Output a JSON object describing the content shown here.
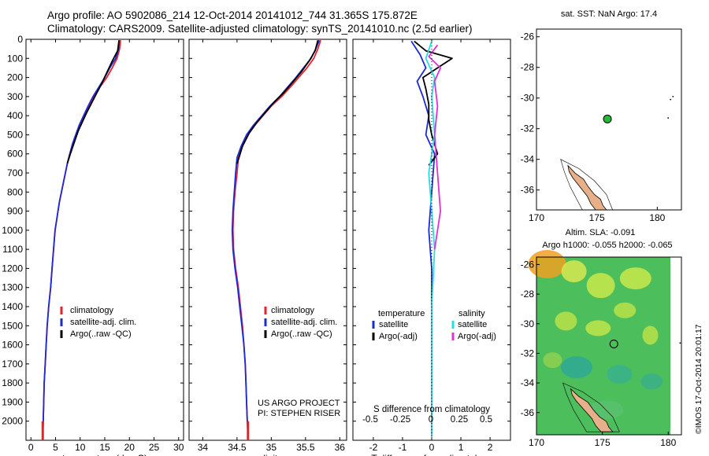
{
  "header": {
    "line1": "Argo profile: AO 5902086_214 12-Oct-2014 20141012_744 31.365S 175.872E",
    "line2": "Climatology: CARS2009. Satellite-adjusted climatology: synTS_20141010.nc (2.5d earlier)"
  },
  "colors": {
    "climatology": "#e8202a",
    "satellite": "#1a2bd6",
    "argo": "#000000",
    "sat_cyan": "#22e0e0",
    "argo_magenta": "#e030d0",
    "land": "#e8b088",
    "buoy": "#22bb33"
  },
  "chart_data": [
    {
      "type": "line",
      "id": "temperature",
      "xlabel": "temperature (deg C)",
      "ylabel": "",
      "xlim": [
        -1,
        31
      ],
      "ylim": [
        2100,
        0
      ],
      "xticks": [
        "0",
        "5",
        "10",
        "15",
        "20",
        "25",
        "30"
      ],
      "yticks": [
        "0",
        "100",
        "200",
        "300",
        "400",
        "500",
        "600",
        "700",
        "800",
        "900",
        "1000",
        "1100",
        "1200",
        "1300",
        "1400",
        "1500",
        "1600",
        "1700",
        "1800",
        "1900",
        "2000"
      ],
      "legend": [
        "climatology",
        "satellite-adj. clim.",
        "Argo(..raw -QC)"
      ],
      "series": [
        {
          "name": "climatology",
          "color": "#e8202a",
          "points": [
            [
              18.2,
              5
            ],
            [
              18.0,
              50
            ],
            [
              17.5,
              100
            ],
            [
              16.5,
              150
            ],
            [
              15.4,
              200
            ],
            [
              14.0,
              250
            ],
            [
              12.8,
              300
            ],
            [
              11.7,
              350
            ],
            [
              10.8,
              400
            ],
            [
              9.9,
              450
            ],
            [
              9.2,
              500
            ],
            [
              8.5,
              550
            ],
            [
              7.9,
              600
            ],
            [
              7.4,
              650
            ],
            [
              7.0,
              700
            ],
            [
              6.6,
              750
            ],
            [
              6.2,
              800
            ],
            [
              5.8,
              850
            ],
            [
              5.5,
              900
            ],
            [
              5.2,
              950
            ],
            [
              4.9,
              1000
            ],
            [
              4.6,
              1100
            ],
            [
              4.3,
              1200
            ],
            [
              4.0,
              1300
            ],
            [
              3.6,
              1400
            ],
            [
              3.3,
              1500
            ],
            [
              3.1,
              1600
            ],
            [
              2.9,
              1700
            ],
            [
              2.7,
              1800
            ],
            [
              2.6,
              1900
            ],
            [
              2.5,
              2000
            ],
            [
              2.4,
              2080
            ]
          ]
        },
        {
          "name": "satellite-adj. clim.",
          "color": "#1a2bd6",
          "points": [
            [
              17.9,
              5
            ],
            [
              17.8,
              50
            ],
            [
              17.2,
              100
            ],
            [
              16.0,
              150
            ],
            [
              15.0,
              200
            ],
            [
              13.8,
              250
            ],
            [
              12.6,
              300
            ],
            [
              11.6,
              350
            ],
            [
              10.7,
              400
            ],
            [
              9.8,
              450
            ],
            [
              9.1,
              500
            ],
            [
              8.4,
              550
            ],
            [
              7.9,
              600
            ],
            [
              7.4,
              650
            ],
            [
              7.0,
              700
            ],
            [
              6.6,
              750
            ],
            [
              6.2,
              800
            ],
            [
              5.8,
              850
            ],
            [
              5.5,
              900
            ],
            [
              5.2,
              950
            ],
            [
              4.9,
              1000
            ],
            [
              4.6,
              1100
            ],
            [
              4.3,
              1200
            ],
            [
              4.0,
              1300
            ],
            [
              3.6,
              1400
            ],
            [
              3.3,
              1500
            ],
            [
              3.1,
              1600
            ],
            [
              2.9,
              1700
            ],
            [
              2.7,
              1800
            ],
            [
              2.6,
              1900
            ],
            [
              2.5,
              2000
            ],
            [
              2.4,
              2080
            ]
          ]
        },
        {
          "name": "Argo(..raw -QC)",
          "color": "#000000",
          "points": [
            [
              17.9,
              5
            ],
            [
              17.6,
              60
            ],
            [
              16.4,
              120
            ],
            [
              15.3,
              180
            ],
            [
              14.4,
              230
            ],
            [
              13.4,
              280
            ],
            [
              12.4,
              330
            ],
            [
              11.4,
              380
            ],
            [
              10.5,
              430
            ],
            [
              9.6,
              480
            ],
            [
              8.8,
              540
            ],
            [
              8.0,
              600
            ],
            [
              7.4,
              650
            ]
          ]
        }
      ]
    },
    {
      "type": "line",
      "id": "salinity",
      "xlabel": "salinity",
      "ylabel": "",
      "xlim": [
        33.8,
        36.1
      ],
      "ylim": [
        2100,
        0
      ],
      "xticks": [
        "34",
        "34.5",
        "35",
        "35.5",
        "36"
      ],
      "legend": [
        "climatology",
        "satellite-adj. clim.",
        "Argo(..raw -QC)"
      ],
      "annotation": [
        "US ARGO PROJECT",
        "PI: STEPHEN RISER"
      ],
      "series": [
        {
          "name": "climatology",
          "color": "#e8202a",
          "points": [
            [
              35.72,
              5
            ],
            [
              35.68,
              50
            ],
            [
              35.62,
              100
            ],
            [
              35.52,
              150
            ],
            [
              35.4,
              200
            ],
            [
              35.28,
              250
            ],
            [
              35.15,
              300
            ],
            [
              35.0,
              350
            ],
            [
              34.88,
              400
            ],
            [
              34.76,
              450
            ],
            [
              34.66,
              500
            ],
            [
              34.58,
              560
            ],
            [
              34.52,
              620
            ],
            [
              34.5,
              700
            ],
            [
              34.47,
              800
            ],
            [
              34.45,
              900
            ],
            [
              34.44,
              1000
            ],
            [
              34.45,
              1100
            ],
            [
              34.48,
              1200
            ],
            [
              34.52,
              1300
            ],
            [
              34.55,
              1400
            ],
            [
              34.58,
              1500
            ],
            [
              34.6,
              1600
            ],
            [
              34.62,
              1700
            ],
            [
              34.63,
              1800
            ],
            [
              34.64,
              1900
            ],
            [
              34.65,
              2000
            ],
            [
              34.66,
              2080
            ]
          ]
        },
        {
          "name": "satellite-adj. clim.",
          "color": "#1a2bd6",
          "points": [
            [
              35.7,
              5
            ],
            [
              35.65,
              50
            ],
            [
              35.58,
              100
            ],
            [
              35.47,
              150
            ],
            [
              35.36,
              200
            ],
            [
              35.24,
              250
            ],
            [
              35.12,
              300
            ],
            [
              34.98,
              350
            ],
            [
              34.86,
              400
            ],
            [
              34.74,
              450
            ],
            [
              34.64,
              500
            ],
            [
              34.56,
              560
            ],
            [
              34.5,
              620
            ],
            [
              34.48,
              700
            ],
            [
              34.46,
              800
            ],
            [
              34.44,
              900
            ],
            [
              34.43,
              1000
            ],
            [
              34.44,
              1100
            ],
            [
              34.47,
              1200
            ],
            [
              34.51,
              1300
            ],
            [
              34.54,
              1400
            ],
            [
              34.57,
              1500
            ],
            [
              34.6,
              1600
            ],
            [
              34.62,
              1700
            ],
            [
              34.63,
              1800
            ],
            [
              34.64,
              1900
            ],
            [
              34.65,
              2000
            ],
            [
              34.66,
              2080
            ]
          ]
        },
        {
          "name": "Argo(..raw -QC)",
          "color": "#000000",
          "points": [
            [
              35.68,
              5
            ],
            [
              35.64,
              60
            ],
            [
              35.56,
              110
            ],
            [
              35.44,
              170
            ],
            [
              35.3,
              230
            ],
            [
              35.18,
              280
            ],
            [
              35.04,
              330
            ],
            [
              34.92,
              380
            ],
            [
              34.8,
              430
            ],
            [
              34.68,
              490
            ],
            [
              34.58,
              560
            ],
            [
              34.52,
              630
            ],
            [
              34.5,
              650
            ]
          ]
        }
      ]
    },
    {
      "type": "line",
      "id": "difference",
      "xlabel": "T difference from climatology",
      "xlabel_top": "S difference from climatology",
      "xlim": [
        -2.7,
        2.7
      ],
      "ylim": [
        2100,
        0
      ],
      "xticks": [
        "-2",
        "-1",
        "0",
        "1",
        "2"
      ],
      "xticks_top": [
        "-0.5",
        "-0.25",
        "0",
        "0.25",
        "0.5"
      ],
      "legend_temperature": [
        "temperature",
        "satellite",
        "Argo(-adj)"
      ],
      "legend_salinity": [
        "salinity",
        "satellite",
        "Argo(-adj)"
      ],
      "series": [
        {
          "name": "satellite",
          "color": "#1a2bd6",
          "points": [
            [
              -0.7,
              10
            ],
            [
              -0.4,
              80
            ],
            [
              -0.2,
              150
            ],
            [
              -0.5,
              220
            ],
            [
              -0.3,
              300
            ],
            [
              -0.1,
              400
            ],
            [
              -0.2,
              500
            ],
            [
              0.1,
              600
            ],
            [
              0.0,
              800
            ],
            [
              -0.1,
              1000
            ],
            [
              0.0,
              1200
            ],
            [
              0.0,
              1500
            ],
            [
              0.0,
              1800
            ],
            [
              0.0,
              2080
            ]
          ]
        },
        {
          "name": "Argo(-adj)",
          "color": "#000000",
          "points": [
            [
              -0.6,
              10
            ],
            [
              -0.2,
              60
            ],
            [
              0.7,
              100
            ],
            [
              0.2,
              150
            ],
            [
              -0.3,
              200
            ],
            [
              -0.2,
              260
            ],
            [
              -0.1,
              340
            ],
            [
              -0.1,
              420
            ],
            [
              0.0,
              500
            ],
            [
              0.2,
              600
            ],
            [
              -0.1,
              660
            ]
          ]
        },
        {
          "name": "satellite",
          "color": "#22e0e0",
          "points": [
            [
              0.0,
              10
            ],
            [
              -0.2,
              100
            ],
            [
              0.1,
              200
            ],
            [
              0.0,
              300
            ],
            [
              0.1,
              500
            ],
            [
              -0.1,
              700
            ],
            [
              0.0,
              900
            ],
            [
              0.1,
              1100
            ],
            [
              0.0,
              1400
            ],
            [
              0.0,
              1700
            ],
            [
              0.0,
              2080
            ]
          ]
        },
        {
          "name": "Argo(-adj)",
          "color": "#e030d0",
          "points": [
            [
              0.2,
              30
            ],
            [
              -0.1,
              90
            ],
            [
              0.3,
              150
            ],
            [
              0.1,
              220
            ],
            [
              0.2,
              350
            ],
            [
              0.1,
              500
            ],
            [
              0.2,
              700
            ],
            [
              0.3,
              900
            ],
            [
              0.1,
              1100
            ]
          ]
        }
      ]
    },
    {
      "type": "scatter",
      "id": "sst-map",
      "title": "sat. SST: NaN Argo: 17.4",
      "xlim": [
        170,
        182
      ],
      "ylim": [
        -37.3,
        -25.5
      ],
      "xticks": [
        "170",
        "175",
        "180"
      ],
      "yticks": [
        "-26",
        "-28",
        "-30",
        "-32",
        "-34",
        "-36"
      ],
      "point": {
        "lon": 175.872,
        "lat": -31.365
      }
    },
    {
      "type": "heatmap",
      "id": "sla-map",
      "title": "Altim. SLA: -0.091",
      "subtitle": "Argo h1000: -0.055 h2000: -0.065",
      "xlim": [
        170,
        181
      ],
      "ylim": [
        -37.5,
        -25.5
      ],
      "xticks": [
        "170",
        "175",
        "180"
      ],
      "yticks": [
        "-26",
        "-28",
        "-30",
        "-32",
        "-34",
        "-36"
      ],
      "point": {
        "lon": 175.872,
        "lat": -31.365
      }
    }
  ],
  "footer": {
    "stamp": "©IMOS 17-Oct-2014 20:01:17"
  }
}
